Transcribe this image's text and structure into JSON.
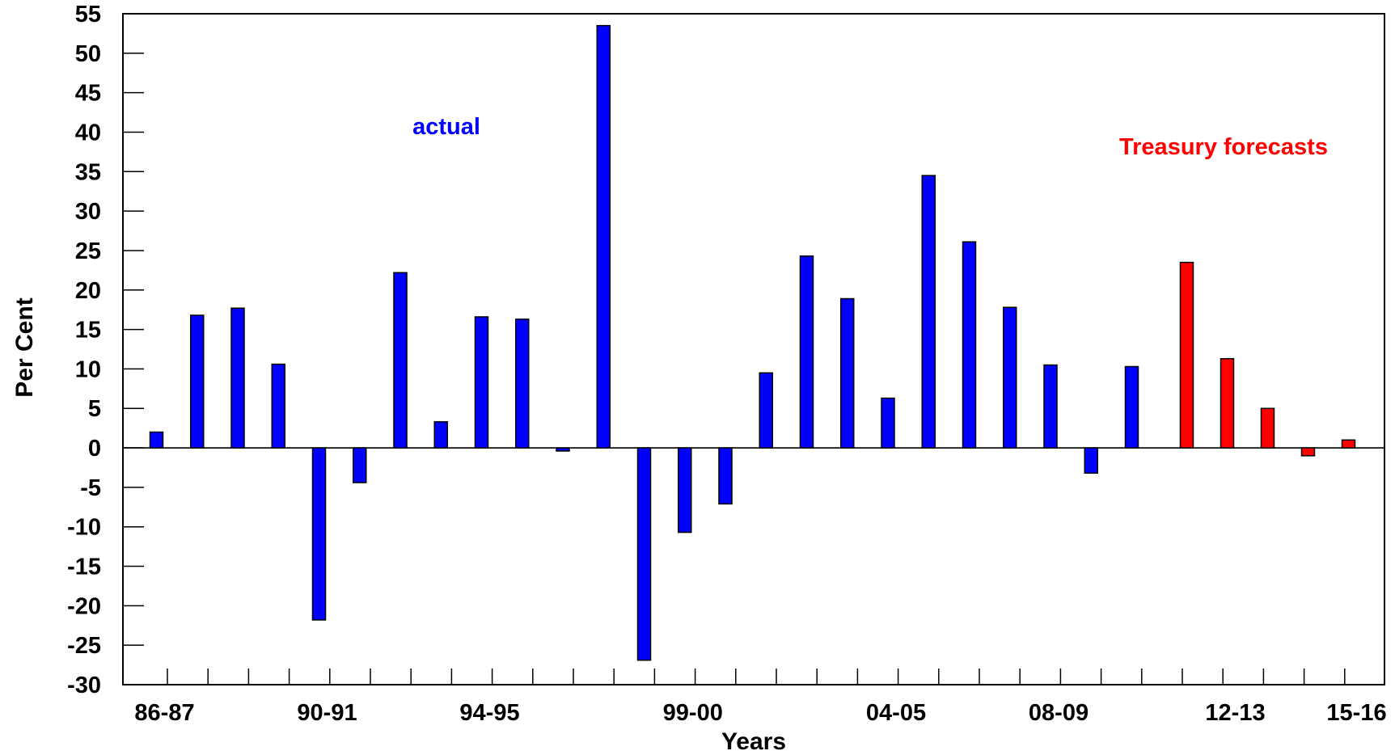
{
  "chart_data": {
    "type": "bar",
    "xlabel": "Years",
    "ylabel": "Per Cent",
    "ylim": [
      -30,
      55
    ],
    "ytick_step": 5,
    "grid": false,
    "x_tick_labels": [
      "86-87",
      "90-91",
      "94-95",
      "99-00",
      "04-05",
      "08-09",
      "12-13",
      "15-16"
    ],
    "annotations": [
      {
        "text": "actual",
        "color": "#0000FF"
      },
      {
        "text": "Treasury forecasts",
        "color": "#FF0000"
      }
    ],
    "series": [
      {
        "kind": "actual",
        "color": "#0000FF",
        "values": [
          2.0,
          16.8,
          17.7,
          10.6,
          -21.8,
          -4.4,
          22.2,
          3.3,
          16.6,
          16.3,
          -0.4,
          53.5,
          -26.9,
          -10.7,
          -7.1,
          9.5,
          24.3,
          18.9,
          6.3,
          34.5,
          26.1,
          17.8,
          10.5,
          -3.2,
          10.3
        ]
      },
      {
        "kind": "Treasury forecasts",
        "color": "#FF0000",
        "values": [
          23.5,
          11.3,
          5.0,
          -1.0,
          1.0
        ]
      }
    ]
  }
}
